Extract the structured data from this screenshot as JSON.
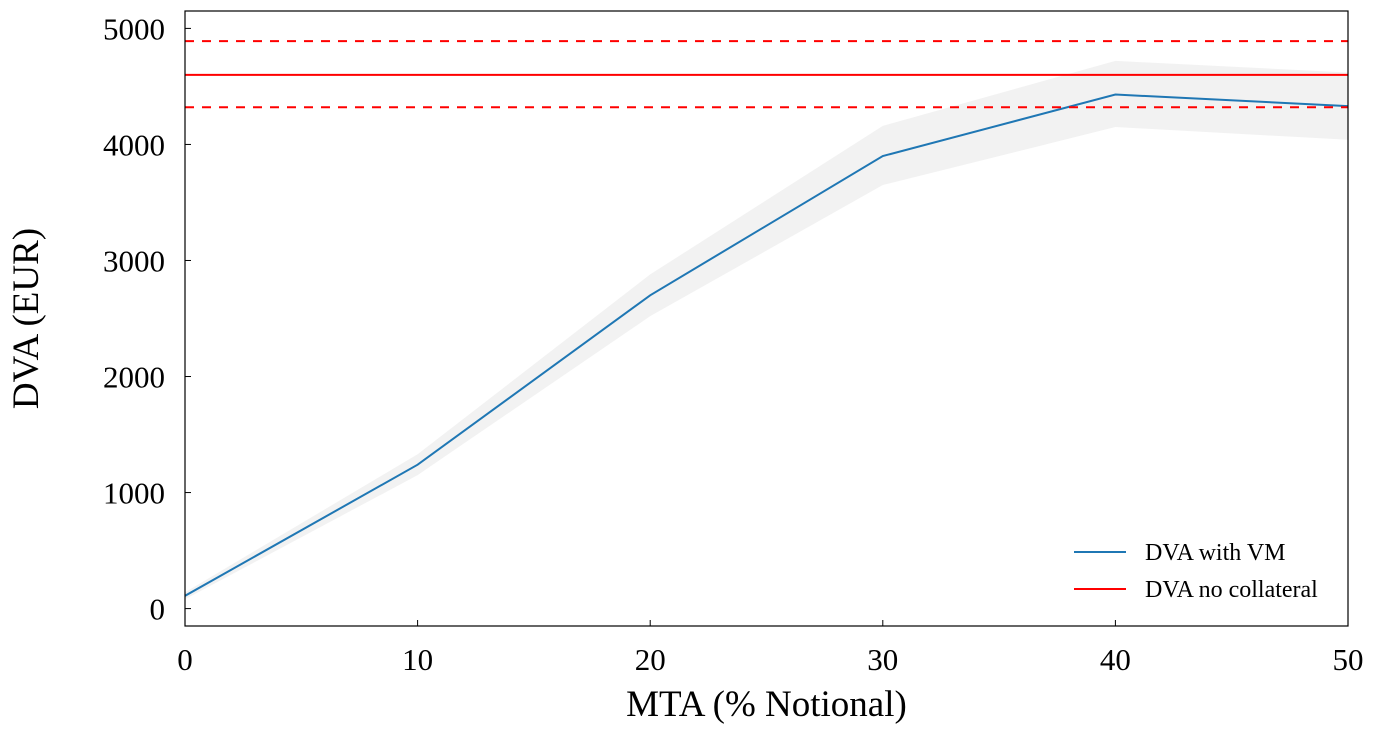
{
  "chart_data": {
    "type": "line",
    "title": "",
    "xlabel": "MTA (% Notional)",
    "ylabel": "DVA (EUR)",
    "xlim": [
      0,
      50
    ],
    "ylim": [
      -150,
      5150
    ],
    "xticks": [
      0,
      10,
      20,
      30,
      40,
      50
    ],
    "yticks": [
      0,
      1000,
      2000,
      3000,
      4000,
      5000
    ],
    "xtick_labels": [
      "0",
      "10",
      "20",
      "30",
      "40",
      "50"
    ],
    "ytick_labels": [
      "0",
      "1000",
      "2000",
      "3000",
      "4000",
      "5000"
    ],
    "grid": false,
    "legend_position": "lower-right",
    "series": [
      {
        "name": "DVA with VM",
        "kind": "line",
        "color": "#1f77b4",
        "x": [
          0,
          10,
          20,
          30,
          40,
          50
        ],
        "y": [
          110,
          1240,
          2700,
          3900,
          4430,
          4330
        ],
        "band_lower": [
          80,
          1150,
          2520,
          3650,
          4150,
          4040
        ],
        "band_upper": [
          140,
          1330,
          2880,
          4160,
          4720,
          4620
        ],
        "band_color": "#d9d9d9"
      },
      {
        "name": "DVA no collateral",
        "kind": "hline",
        "color": "#ff0000",
        "y": 4600,
        "band_lower": 4320,
        "band_upper": 4890
      }
    ]
  }
}
